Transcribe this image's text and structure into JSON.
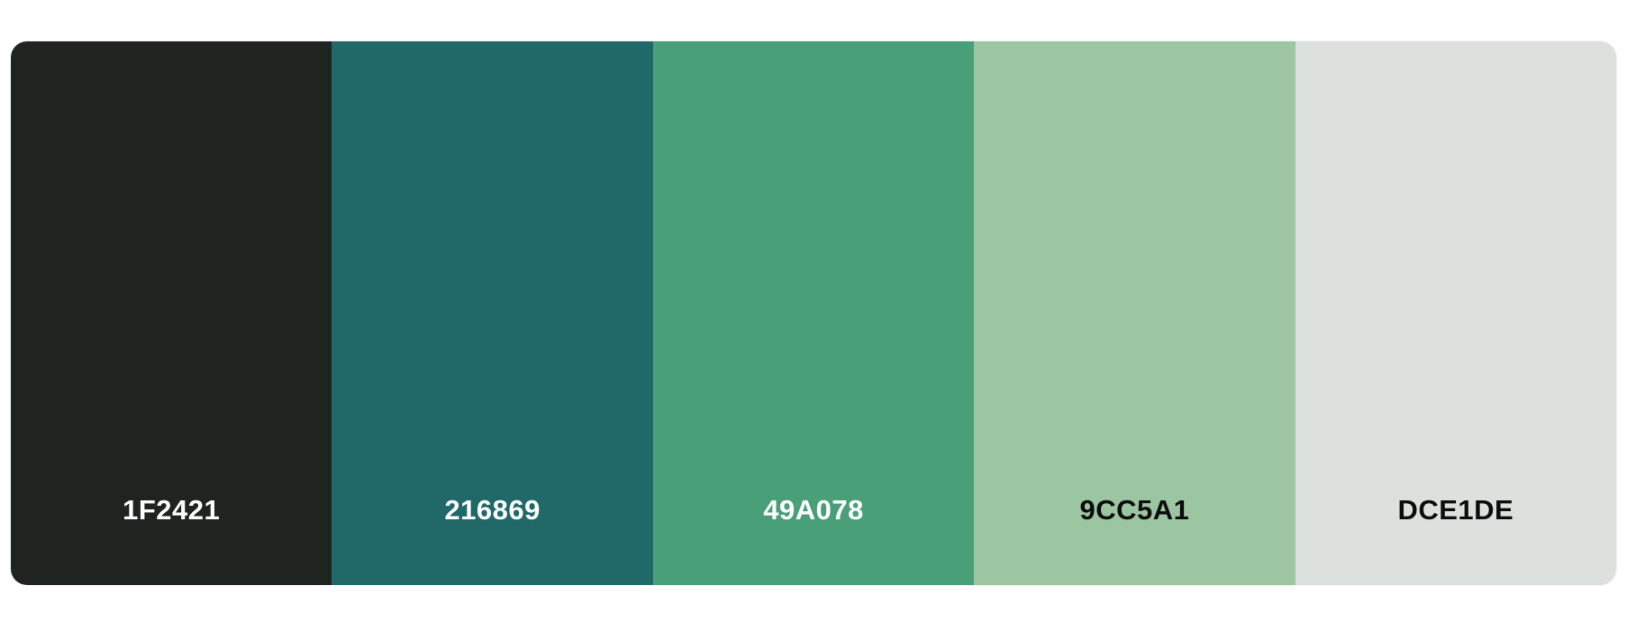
{
  "palette": {
    "swatches": [
      {
        "hex": "1F2421",
        "color": "#1F2421",
        "text_color": "#ffffff"
      },
      {
        "hex": "216869",
        "color": "#216869",
        "text_color": "#ffffff"
      },
      {
        "hex": "49A078",
        "color": "#49A078",
        "text_color": "#ffffff"
      },
      {
        "hex": "9CC5A1",
        "color": "#9CC5A1",
        "text_color": "#0d0d0d"
      },
      {
        "hex": "DCE1DE",
        "color": "#DCE1DE",
        "text_color": "#0d0d0d"
      }
    ]
  }
}
